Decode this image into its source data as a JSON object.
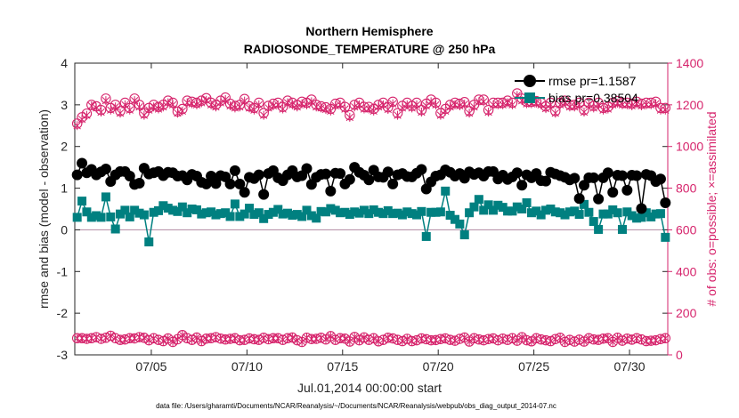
{
  "chart_data": {
    "type": "line",
    "title": "Northern Hemisphere",
    "subtitle": "RADIOSONDE_TEMPERATURE @ 250 hPa",
    "xlabel": "Jul.01,2014 00:00:00 start",
    "ylabel_left": "rmse and bias (model - observation)",
    "ylabel_right": "# of obs: o=possible; ×=assimilated",
    "footnote": "data file: /Users/gharamti/Documents/NCAR/Reanalysis/~/Documents/NCAR/Reanalysis/webpub/obs_diag_output_2014-07.nc",
    "x_ticks": [
      {
        "label": "07/05",
        "value": 5
      },
      {
        "label": "07/10",
        "value": 10
      },
      {
        "label": "07/15",
        "value": 15
      },
      {
        "label": "07/20",
        "value": 20
      },
      {
        "label": "07/25",
        "value": 25
      },
      {
        "label": "07/30",
        "value": 30
      }
    ],
    "xlim": [
      1,
      32
    ],
    "ylim_left": [
      -3,
      4
    ],
    "yticks_left": [
      -3,
      -2,
      -1,
      0,
      1,
      2,
      3,
      4
    ],
    "ylim_right": [
      0,
      1400
    ],
    "yticks_right": [
      0,
      200,
      400,
      600,
      800,
      1000,
      1200,
      1400
    ],
    "n_points": 124,
    "colors": {
      "rmse": "#000000",
      "bias": "#008080",
      "obs": "#d6246c",
      "zero_line": "#b088a0",
      "axis": "#262626"
    },
    "legend": {
      "placement": "top-right",
      "entries": [
        {
          "label": "rmse pr=1.1587",
          "series": "rmse"
        },
        {
          "label": "bias pr=0.38504",
          "series": "bias"
        }
      ]
    },
    "series": [
      {
        "name": "rmse",
        "axis": "left",
        "marker": "filled-circle",
        "values": [
          1.32,
          1.6,
          1.37,
          1.45,
          1.32,
          1.39,
          1.46,
          1.16,
          1.32,
          1.4,
          1.4,
          1.29,
          1.09,
          1.12,
          1.48,
          1.34,
          1.37,
          1.4,
          1.3,
          1.38,
          1.37,
          1.29,
          1.3,
          1.2,
          1.33,
          1.29,
          1.14,
          1.1,
          1.29,
          1.11,
          1.3,
          1.27,
          1.1,
          1.42,
          1.1,
          0.9,
          1.26,
          1.23,
          1.32,
          0.85,
          1.35,
          1.42,
          1.25,
          1.18,
          1.32,
          1.42,
          1.27,
          1.3,
          1.47,
          1.09,
          1.26,
          1.33,
          1.34,
          0.93,
          1.36,
          1.35,
          1.1,
          1.21,
          1.5,
          1.38,
          1.31,
          1.2,
          1.43,
          1.27,
          1.26,
          1.39,
          1.1,
          1.32,
          1.35,
          1.28,
          1.27,
          1.36,
          1.45,
          0.98,
          1.15,
          1.29,
          1.32,
          1.44,
          1.38,
          1.29,
          1.35,
          1.24,
          1.39,
          1.33,
          1.37,
          1.29,
          1.4,
          1.4,
          1.22,
          1.31,
          1.21,
          1.27,
          1.37,
          1.07,
          1.32,
          1.25,
          1.35,
          1.18,
          1.17,
          1.38,
          1.34,
          1.3,
          1.26,
          1.2,
          1.24,
          0.75,
          1.07,
          1.25,
          1.25,
          0.74,
          1.25,
          1.37,
          0.9,
          1.31,
          1.3,
          0.95,
          1.31,
          1.3,
          0.51,
          1.33,
          1.3,
          1.16,
          1.22,
          0.65
        ]
      },
      {
        "name": "bias",
        "axis": "left",
        "marker": "filled-square",
        "values": [
          0.3,
          0.69,
          0.43,
          0.3,
          0.34,
          0.3,
          0.79,
          0.31,
          0.02,
          0.38,
          0.47,
          0.31,
          0.47,
          0.4,
          0.36,
          -0.29,
          0.42,
          0.46,
          0.58,
          0.52,
          0.47,
          0.44,
          0.55,
          0.41,
          0.5,
          0.48,
          0.38,
          0.41,
          0.43,
          0.36,
          0.39,
          0.41,
          0.32,
          0.62,
          0.32,
          0.38,
          0.52,
          0.37,
          0.41,
          0.27,
          0.37,
          0.42,
          0.49,
          0.38,
          0.4,
          0.35,
          0.37,
          0.32,
          0.47,
          0.34,
          0.28,
          0.44,
          0.43,
          0.51,
          0.47,
          0.41,
          0.42,
          0.37,
          0.43,
          0.4,
          0.47,
          0.39,
          0.48,
          0.42,
          0.39,
          0.46,
          0.39,
          0.4,
          0.36,
          0.43,
          0.39,
          0.36,
          0.44,
          -0.16,
          0.42,
          0.42,
          0.43,
          0.93,
          0.35,
          0.25,
          0.14,
          -0.12,
          0.41,
          0.55,
          0.73,
          0.47,
          0.6,
          0.47,
          0.59,
          0.54,
          0.45,
          0.45,
          0.55,
          0.5,
          0.65,
          0.41,
          0.45,
          0.36,
          0.47,
          0.5,
          0.43,
          0.41,
          0.36,
          0.43,
          0.45,
          0.37,
          0.61,
          0.42,
          0.2,
          0.01,
          0.38,
          0.38,
          0.48,
          0.41,
          0.01,
          0.43,
          0.34,
          0.28,
          0.3,
          0.41,
          0.31,
          0.38,
          0.39,
          -0.18
        ]
      },
      {
        "name": "possible",
        "axis": "right",
        "marker": "open-circle",
        "values": [
          1110,
          1140,
          1158,
          1200,
          1193,
          1175,
          1230,
          1185,
          1200,
          1170,
          1210,
          1185,
          1230,
          1200,
          1160,
          1185,
          1200,
          1190,
          1200,
          1220,
          1210,
          1168,
          1180,
          1220,
          1215,
          1210,
          1220,
          1232,
          1210,
          1200,
          1220,
          1235,
          1205,
          1195,
          1200,
          1228,
          1193,
          1185,
          1210,
          1160,
          1195,
          1205,
          1210,
          1190,
          1220,
          1210,
          1200,
          1215,
          1210,
          1225,
          1200,
          1193,
          1188,
          1180,
          1205,
          1210,
          1190,
          1150,
          1200,
          1210,
          1190,
          1190,
          1180,
          1200,
          1210,
          1188,
          1215,
          1160,
          1195,
          1210,
          1195,
          1210,
          1175,
          1205,
          1225,
          1210,
          1160,
          1180,
          1200,
          1210,
          1205,
          1213,
          1170,
          1200,
          1225,
          1225,
          1175,
          1210,
          1210,
          1210,
          1220,
          1210,
          1255,
          1230,
          1215,
          1215,
          1218,
          1210,
          1192,
          1210,
          1170,
          1210,
          1220,
          1200,
          1200,
          1210,
          1175,
          1210,
          1195,
          1210,
          1185,
          1190,
          1210,
          1218,
          1210,
          1210,
          1205,
          1215,
          1205,
          1210,
          1210,
          1215,
          1185,
          1185
        ]
      },
      {
        "name": "assimilated",
        "axis": "right",
        "marker": "cross",
        "values": [
          1100,
          1130,
          1150,
          1195,
          1185,
          1165,
          1220,
          1175,
          1190,
          1160,
          1200,
          1175,
          1220,
          1190,
          1150,
          1175,
          1190,
          1180,
          1190,
          1210,
          1200,
          1160,
          1170,
          1210,
          1205,
          1200,
          1210,
          1222,
          1200,
          1190,
          1210,
          1225,
          1195,
          1185,
          1190,
          1218,
          1185,
          1175,
          1200,
          1150,
          1185,
          1195,
          1200,
          1180,
          1210,
          1200,
          1190,
          1205,
          1200,
          1215,
          1190,
          1185,
          1178,
          1170,
          1195,
          1200,
          1180,
          1140,
          1190,
          1200,
          1180,
          1180,
          1170,
          1190,
          1200,
          1178,
          1205,
          1150,
          1185,
          1200,
          1185,
          1200,
          1165,
          1195,
          1215,
          1200,
          1150,
          1170,
          1190,
          1200,
          1195,
          1203,
          1160,
          1190,
          1215,
          1215,
          1165,
          1200,
          1200,
          1200,
          1210,
          1200,
          1245,
          1220,
          1205,
          1205,
          1208,
          1200,
          1182,
          1200,
          1160,
          1200,
          1210,
          1190,
          1190,
          1200,
          1165,
          1200,
          1185,
          1200,
          1175,
          1180,
          1200,
          1208,
          1200,
          1200,
          1195,
          1205,
          1195,
          1200,
          1200,
          1205,
          1175,
          1175
        ]
      },
      {
        "name": "possible_low",
        "axis": "right",
        "marker": "open-circle",
        "values": [
          80,
          80,
          77,
          80,
          85,
          77,
          82,
          92,
          80,
          72,
          74,
          80,
          79,
          85,
          82,
          70,
          80,
          72,
          66,
          79,
          62,
          75,
          95,
          80,
          72,
          83,
          66,
          78,
          80,
          85,
          78,
          74,
          77,
          80,
          70,
          72,
          79,
          75,
          72,
          82,
          75,
          80,
          80,
          72,
          80,
          83,
          70,
          62,
          82,
          76,
          77,
          82,
          74,
          90,
          72,
          80,
          78,
          64,
          86,
          70,
          84,
          72,
          80,
          65,
          72,
          82,
          79,
          72,
          66,
          77,
          66,
          70,
          79,
          75,
          70,
          71,
          76,
          79,
          72,
          68,
          77,
          83,
          64,
          80,
          74,
          70,
          76,
          79,
          70,
          78,
          72,
          80,
          68,
          85,
          70,
          65,
          80,
          74,
          70,
          66,
          76,
          82,
          62,
          72,
          64,
          73,
          64,
          80,
          74,
          72,
          78,
          80,
          62,
          82,
          68,
          78,
          73,
          80,
          74,
          66,
          68,
          70,
          76,
          80
        ]
      },
      {
        "name": "assimilated_low",
        "axis": "right",
        "marker": "cross",
        "values": [
          80,
          80,
          77,
          80,
          85,
          77,
          82,
          92,
          80,
          72,
          74,
          80,
          79,
          85,
          82,
          70,
          80,
          72,
          66,
          79,
          62,
          75,
          95,
          80,
          72,
          83,
          66,
          78,
          80,
          85,
          78,
          74,
          77,
          80,
          70,
          72,
          79,
          75,
          72,
          82,
          75,
          80,
          80,
          72,
          80,
          83,
          70,
          62,
          82,
          76,
          77,
          82,
          74,
          90,
          72,
          80,
          78,
          64,
          86,
          70,
          84,
          72,
          80,
          65,
          72,
          82,
          79,
          72,
          66,
          77,
          66,
          70,
          79,
          75,
          70,
          71,
          76,
          79,
          72,
          68,
          77,
          83,
          64,
          80,
          74,
          70,
          76,
          79,
          70,
          78,
          72,
          80,
          68,
          85,
          70,
          65,
          80,
          74,
          70,
          66,
          76,
          82,
          62,
          72,
          64,
          73,
          64,
          80,
          74,
          72,
          78,
          80,
          62,
          82,
          68,
          78,
          73,
          80,
          74,
          66,
          68,
          70,
          76,
          80
        ]
      }
    ]
  }
}
